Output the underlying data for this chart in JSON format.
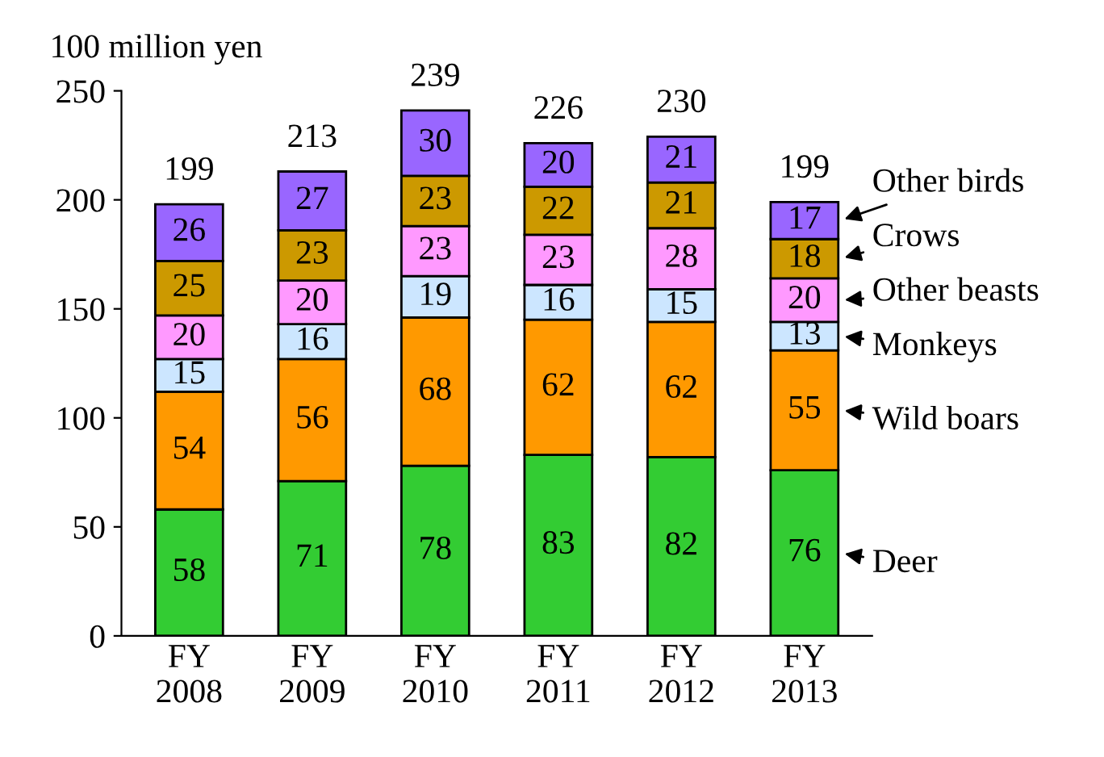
{
  "chart_data": {
    "type": "bar",
    "stacked": true,
    "ylabel": "100 million yen",
    "categories": [
      "FY\n2008",
      "FY\n2009",
      "FY\n2010",
      "FY\n2011",
      "FY\n2012",
      "FY\n2013"
    ],
    "series": [
      {
        "name": "Deer",
        "color": "#33cc33",
        "values": [
          58,
          71,
          78,
          83,
          82,
          76
        ]
      },
      {
        "name": "Wild boars",
        "color": "#ff9900",
        "values": [
          54,
          56,
          68,
          62,
          62,
          55
        ]
      },
      {
        "name": "Monkeys",
        "color": "#cce6ff",
        "values": [
          15,
          16,
          19,
          16,
          15,
          13
        ]
      },
      {
        "name": "Other beasts",
        "color": "#ff99ff",
        "values": [
          20,
          20,
          23,
          23,
          28,
          20
        ]
      },
      {
        "name": "Crows",
        "color": "#cc9900",
        "values": [
          25,
          23,
          23,
          22,
          21,
          18
        ]
      },
      {
        "name": "Other birds",
        "color": "#9966ff",
        "values": [
          26,
          27,
          30,
          20,
          21,
          17
        ]
      }
    ],
    "totals": [
      "199",
      "213",
      "239",
      "226",
      "230",
      "199"
    ],
    "data_labels": true,
    "legend": "right",
    "grid": false,
    "ylim": [
      0,
      250
    ],
    "yticks": [
      0,
      50,
      100,
      150,
      200,
      250
    ]
  }
}
